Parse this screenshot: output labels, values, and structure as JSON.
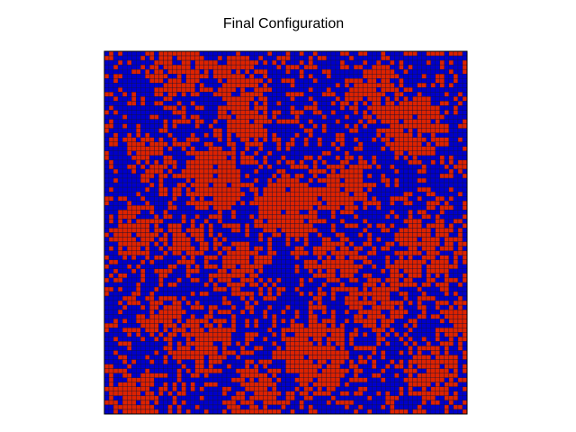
{
  "chart_data": {
    "type": "heatmap",
    "title": "Final Configuration",
    "xlabel": "",
    "ylabel": "",
    "grid": true,
    "rows": 80,
    "cols": 80,
    "states": [
      {
        "value": -1,
        "color": "#0000cc"
      },
      {
        "value": 1,
        "color": "#dd2200"
      }
    ],
    "cell_edge_color": "#111133",
    "axes_frame_color": "#000000",
    "seed": 1907,
    "clusters": [
      {
        "row": 3,
        "col": 16,
        "radius": 5.5,
        "density": 0.85
      },
      {
        "row": 6,
        "col": 29,
        "radius": 4.5,
        "density": 0.8
      },
      {
        "row": 8,
        "col": 60,
        "radius": 5,
        "density": 0.8
      },
      {
        "row": 14,
        "col": 30,
        "radius": 4.5,
        "density": 0.9
      },
      {
        "row": 16,
        "col": 67,
        "radius": 6,
        "density": 0.85
      },
      {
        "row": 22,
        "col": 10,
        "radius": 4,
        "density": 0.75
      },
      {
        "row": 28,
        "col": 24,
        "radius": 6,
        "density": 0.9
      },
      {
        "row": 34,
        "col": 40,
        "radius": 6.5,
        "density": 0.9
      },
      {
        "row": 30,
        "col": 52,
        "radius": 5,
        "density": 0.85
      },
      {
        "row": 40,
        "col": 6,
        "radius": 4.5,
        "density": 0.8
      },
      {
        "row": 42,
        "col": 18,
        "radius": 4,
        "density": 0.75
      },
      {
        "row": 48,
        "col": 30,
        "radius": 5,
        "density": 0.85
      },
      {
        "row": 46,
        "col": 50,
        "radius": 4.5,
        "density": 0.85
      },
      {
        "row": 44,
        "col": 70,
        "radius": 6,
        "density": 0.85
      },
      {
        "row": 56,
        "col": 60,
        "radius": 5,
        "density": 0.8
      },
      {
        "row": 58,
        "col": 12,
        "radius": 4,
        "density": 0.75
      },
      {
        "row": 64,
        "col": 22,
        "radius": 5,
        "density": 0.8
      },
      {
        "row": 66,
        "col": 46,
        "radius": 7,
        "density": 0.9
      },
      {
        "row": 70,
        "col": 72,
        "radius": 5.5,
        "density": 0.8
      },
      {
        "row": 76,
        "col": 6,
        "radius": 4,
        "density": 0.85
      },
      {
        "row": 76,
        "col": 32,
        "radius": 5,
        "density": 0.8
      },
      {
        "row": 60,
        "col": 78,
        "radius": 3.5,
        "density": 0.75
      }
    ],
    "background_density": 0.28
  }
}
